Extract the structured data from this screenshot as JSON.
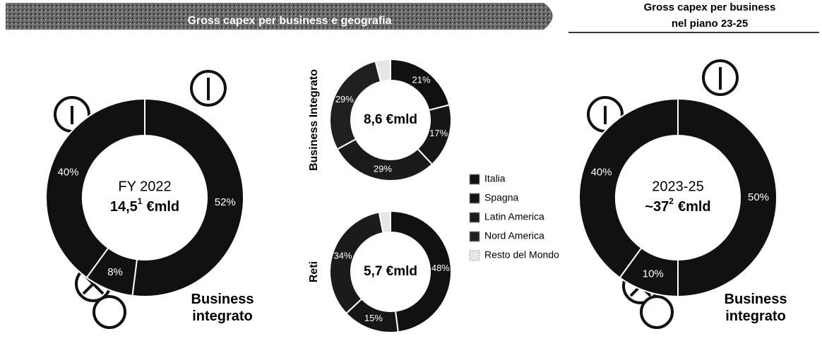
{
  "header": {
    "banner": "Gross capex per business e geografia",
    "right_title": "Gross capex per business",
    "right_subtitle": "nel piano 23-25"
  },
  "chart_data": [
    {
      "type": "donut",
      "center_title": "FY 2022",
      "center_value": "14,5",
      "center_note": "1",
      "center_unit": "€mld",
      "caption": "Business integrato",
      "categories": [
        null,
        null,
        null
      ],
      "values": [
        52,
        8,
        40
      ],
      "value_labels": [
        "52%",
        "8%",
        "40%"
      ],
      "colors": [
        "#111111",
        "#111111",
        "#111111"
      ]
    },
    {
      "type": "donut",
      "label": "Business Integrato",
      "center_value": "8,6 €mld",
      "categories": [
        "Italia",
        "Spagna",
        "Latin America",
        "Nord America",
        "Resto del Mondo"
      ],
      "values": [
        21,
        17,
        29,
        29,
        4
      ],
      "value_labels": [
        "21%",
        "17%",
        "29%",
        "29%",
        null
      ],
      "colors": [
        "#111111",
        "#161616",
        "#1b1b1b",
        "#202020",
        "#e6e6e6"
      ]
    },
    {
      "type": "donut",
      "label": "Reti",
      "center_value": "5,7 €mld",
      "categories": [
        "Italia",
        "Spagna",
        "Latin America",
        "Resto del Mondo"
      ],
      "values": [
        48,
        15,
        34,
        3
      ],
      "value_labels": [
        "48%",
        "15%",
        "34%",
        null
      ],
      "colors": [
        "#111111",
        "#161616",
        "#1b1b1b",
        "#e6e6e6"
      ]
    },
    {
      "type": "donut",
      "center_title": "2023-25",
      "center_value": "~37",
      "center_note": "2",
      "center_unit": "€mld",
      "caption": "Business integrato",
      "categories": [
        null,
        null,
        null
      ],
      "values": [
        50,
        10,
        40
      ],
      "value_labels": [
        "50%",
        "10%",
        "40%"
      ],
      "colors": [
        "#111111",
        "#111111",
        "#111111"
      ]
    }
  ]
}
